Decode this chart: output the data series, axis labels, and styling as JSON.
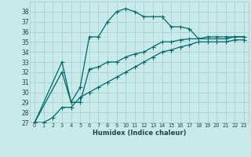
{
  "xlabel": "Humidex (Indice chaleur)",
  "bg_color": "#c8eaea",
  "grid_color": "#a8d0d0",
  "line_color": "#006868",
  "xlim": [
    -0.5,
    23.5
  ],
  "ylim": [
    27,
    39
  ],
  "yticks": [
    27,
    28,
    29,
    30,
    31,
    32,
    33,
    34,
    35,
    36,
    37,
    38
  ],
  "xticks": [
    0,
    1,
    2,
    3,
    4,
    5,
    6,
    7,
    8,
    9,
    10,
    11,
    12,
    13,
    14,
    15,
    16,
    17,
    18,
    19,
    20,
    21,
    22,
    23
  ],
  "line1_x": [
    0,
    3,
    4,
    5,
    6,
    7,
    8,
    9,
    10,
    11,
    12,
    13,
    14,
    15,
    16,
    17,
    18,
    19,
    20,
    21,
    22,
    23
  ],
  "line1_y": [
    27,
    33,
    29,
    30.5,
    35.5,
    35.5,
    37.0,
    38.0,
    38.3,
    38.0,
    37.5,
    37.5,
    37.5,
    36.5,
    36.5,
    36.3,
    35.3,
    35.3,
    35.3,
    35.3,
    35.5,
    35.5
  ],
  "line2_x": [
    0,
    3,
    4,
    5,
    6,
    7,
    8,
    9,
    10,
    11,
    12,
    13,
    14,
    15,
    16,
    17,
    18,
    19,
    20,
    21,
    22,
    23
  ],
  "line2_y": [
    27,
    32.0,
    29,
    29.0,
    32.3,
    32.5,
    33.0,
    33.0,
    33.5,
    33.8,
    34.0,
    34.5,
    35.0,
    35.0,
    35.2,
    35.3,
    35.3,
    35.5,
    35.5,
    35.5,
    35.5,
    35.5
  ],
  "line3_x": [
    0,
    1,
    2,
    3,
    4,
    5,
    6,
    7,
    8,
    9,
    10,
    11,
    12,
    13,
    14,
    15,
    16,
    17,
    18,
    19,
    20,
    21,
    22,
    23
  ],
  "line3_y": [
    27,
    27,
    27.5,
    28.5,
    28.5,
    29.5,
    30.0,
    30.5,
    31.0,
    31.5,
    32.0,
    32.5,
    33.0,
    33.5,
    34.0,
    34.2,
    34.5,
    34.7,
    35.0,
    35.0,
    35.0,
    35.0,
    35.2,
    35.2
  ]
}
